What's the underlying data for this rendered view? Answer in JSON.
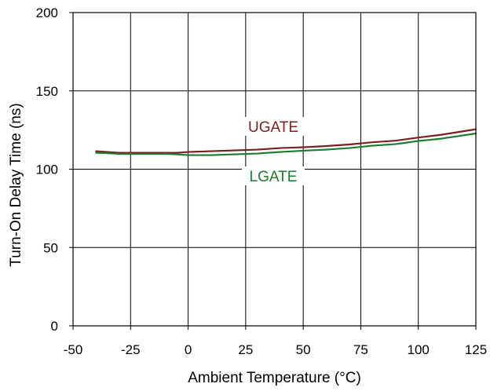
{
  "chart_data": {
    "type": "line",
    "title": "",
    "xlabel": "Ambient Temperature (°C)",
    "ylabel": "Turn-On Delay Time (ns)",
    "xlim": [
      -50,
      125
    ],
    "ylim": [
      0,
      200
    ],
    "xticks": [
      "-50",
      "-25",
      "0",
      "25",
      "50",
      "75",
      "100",
      "125"
    ],
    "yticks": [
      "0",
      "50",
      "100",
      "150",
      "200"
    ],
    "grid": true,
    "legend": "none",
    "series": [
      {
        "name": "UGATE",
        "color": "#7B1F1F",
        "x": [
          -40,
          -35,
          -30,
          -20,
          -10,
          -5,
          0,
          10,
          20,
          30,
          40,
          50,
          60,
          70,
          80,
          90,
          100,
          110,
          125
        ],
        "y": [
          111.5,
          111,
          110.5,
          110.5,
          110.5,
          110.5,
          111,
          111.5,
          112,
          112.5,
          113.5,
          114,
          114.8,
          115.8,
          117.2,
          118.2,
          120.2,
          122,
          125.5
        ]
      },
      {
        "name": "LGATE",
        "color": "#1E7A2E",
        "x": [
          -40,
          -35,
          -30,
          -20,
          -10,
          -5,
          0,
          10,
          20,
          30,
          40,
          50,
          60,
          70,
          80,
          90,
          100,
          110,
          125
        ],
        "y": [
          110.5,
          110.2,
          109.8,
          109.8,
          109.8,
          109.5,
          109,
          109,
          109.5,
          110,
          111,
          111.8,
          112.5,
          113.5,
          115,
          116,
          118,
          119.5,
          122.8
        ]
      }
    ]
  }
}
